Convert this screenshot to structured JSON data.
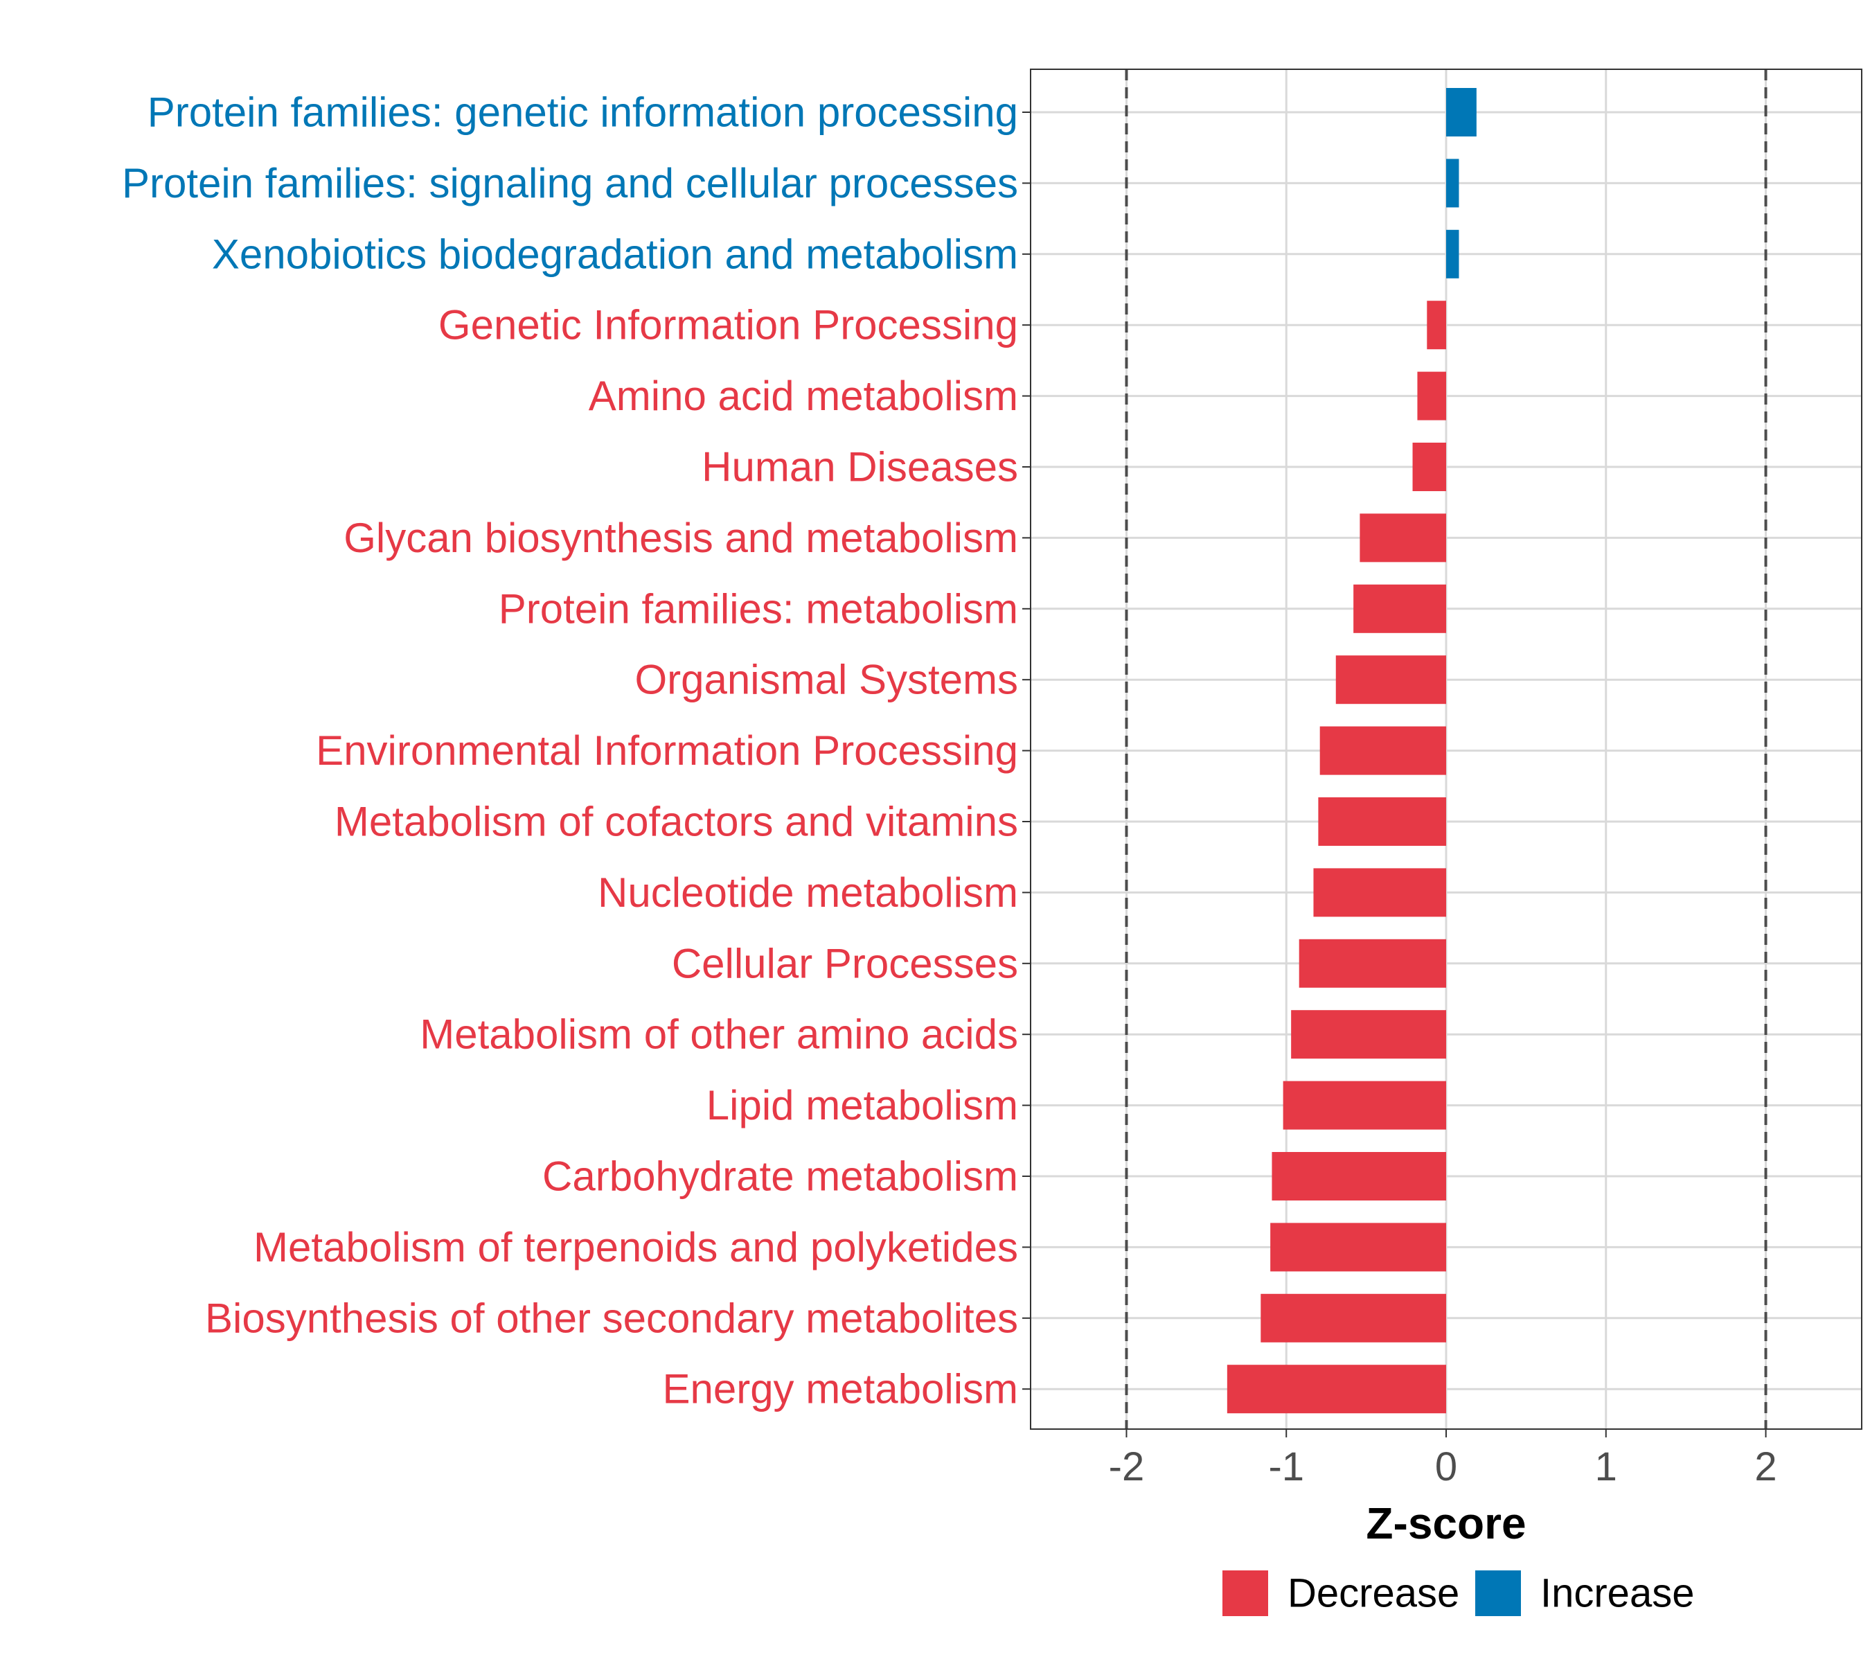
{
  "chart_data": {
    "type": "bar",
    "orientation": "horizontal",
    "title": "",
    "xlabel": "Z-score",
    "ylabel": "",
    "xlim": [
      -2.6,
      2.6
    ],
    "x_ticks": [
      -2,
      -1,
      0,
      1,
      2
    ],
    "x_tick_labels": [
      "-2",
      "-1",
      "0",
      "1",
      "2"
    ],
    "reference_lines": [
      -2,
      2
    ],
    "grid": true,
    "legend_position": "bottom",
    "colors": {
      "Decrease": "#E63946",
      "Increase": "#0077B6",
      "axis_text": "#4D4D4D",
      "grid": "#D9D9D9",
      "reference_line": "#4D4D4D"
    },
    "legend": [
      {
        "name": "Decrease",
        "color": "#E63946"
      },
      {
        "name": "Increase",
        "color": "#0077B6"
      }
    ],
    "categories": [
      {
        "label": "Protein families: genetic information processing",
        "value": 0.19,
        "group": "Increase"
      },
      {
        "label": "Protein families: signaling and cellular processes",
        "value": 0.08,
        "group": "Increase"
      },
      {
        "label": "Xenobiotics biodegradation and metabolism",
        "value": 0.08,
        "group": "Increase"
      },
      {
        "label": "Genetic Information Processing",
        "value": -0.12,
        "group": "Decrease"
      },
      {
        "label": "Amino acid metabolism",
        "value": -0.18,
        "group": "Decrease"
      },
      {
        "label": "Human Diseases",
        "value": -0.21,
        "group": "Decrease"
      },
      {
        "label": "Glycan biosynthesis and metabolism",
        "value": -0.54,
        "group": "Decrease"
      },
      {
        "label": "Protein families: metabolism",
        "value": -0.58,
        "group": "Decrease"
      },
      {
        "label": "Organismal Systems",
        "value": -0.69,
        "group": "Decrease"
      },
      {
        "label": "Environmental Information Processing",
        "value": -0.79,
        "group": "Decrease"
      },
      {
        "label": "Metabolism of cofactors and vitamins",
        "value": -0.8,
        "group": "Decrease"
      },
      {
        "label": "Nucleotide metabolism",
        "value": -0.83,
        "group": "Decrease"
      },
      {
        "label": "Cellular Processes",
        "value": -0.92,
        "group": "Decrease"
      },
      {
        "label": "Metabolism of other amino acids",
        "value": -0.97,
        "group": "Decrease"
      },
      {
        "label": "Lipid metabolism",
        "value": -1.02,
        "group": "Decrease"
      },
      {
        "label": "Carbohydrate metabolism",
        "value": -1.09,
        "group": "Decrease"
      },
      {
        "label": "Metabolism of terpenoids and polyketides",
        "value": -1.1,
        "group": "Decrease"
      },
      {
        "label": "Biosynthesis of other secondary metabolites",
        "value": -1.16,
        "group": "Decrease"
      },
      {
        "label": "Energy metabolism",
        "value": -1.37,
        "group": "Decrease"
      }
    ]
  }
}
